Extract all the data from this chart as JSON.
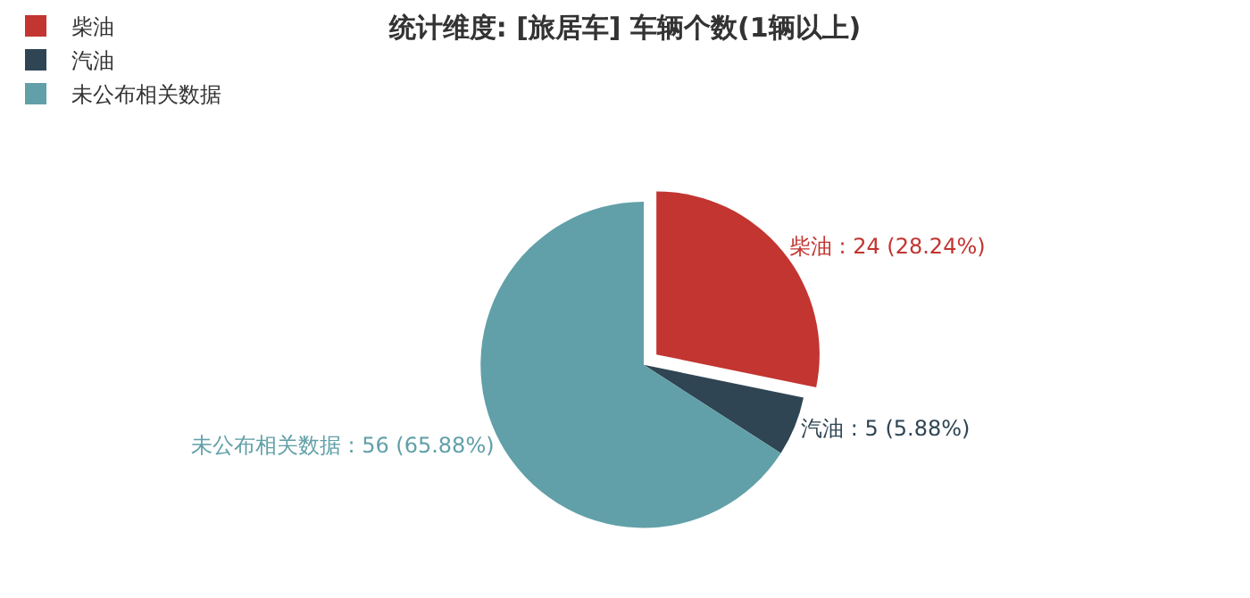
{
  "chart_data": {
    "type": "pie",
    "title": "统计维度: [旅居车] 车辆个数(1辆以上)",
    "categories": [
      "柴油",
      "汽油",
      "未公布相关数据"
    ],
    "values": [
      24,
      5,
      56
    ],
    "colors": [
      "#c23531",
      "#2f4554",
      "#61a0a8"
    ],
    "value_labels": [
      "柴油 : 24 (28.24%)",
      "汽油 : 5 (5.88%)",
      "未公布相关数据 : 56 (65.88%)"
    ],
    "legend": "top left"
  }
}
